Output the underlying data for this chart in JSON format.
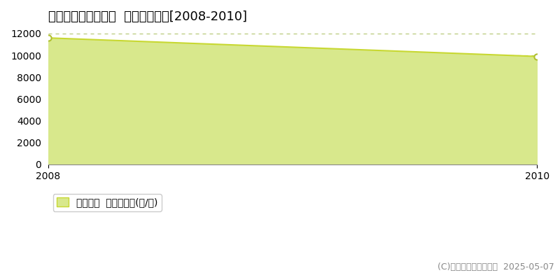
{
  "title": "知多郡南知多町豊浜  農地価格推移[2008-2010]",
  "years": [
    2008,
    2010
  ],
  "values": [
    11600,
    9900
  ],
  "line_color": "#c8d832",
  "fill_color": "#d8e88c",
  "marker_color": "#ffffff",
  "marker_edge_color": "#b0c030",
  "background_color": "#ffffff",
  "grid_color": "#b8c878",
  "ylabel_ticks": [
    0,
    2000,
    4000,
    6000,
    8000,
    10000,
    12000
  ],
  "xlim": [
    2008,
    2010
  ],
  "ylim": [
    0,
    12500
  ],
  "legend_label": "農地価格  平均坪単価(円/坪)",
  "copyright_text": "(C)土地価格ドットコム  2025-05-07",
  "title_fontsize": 13,
  "tick_fontsize": 10,
  "legend_fontsize": 10,
  "copyright_fontsize": 9
}
